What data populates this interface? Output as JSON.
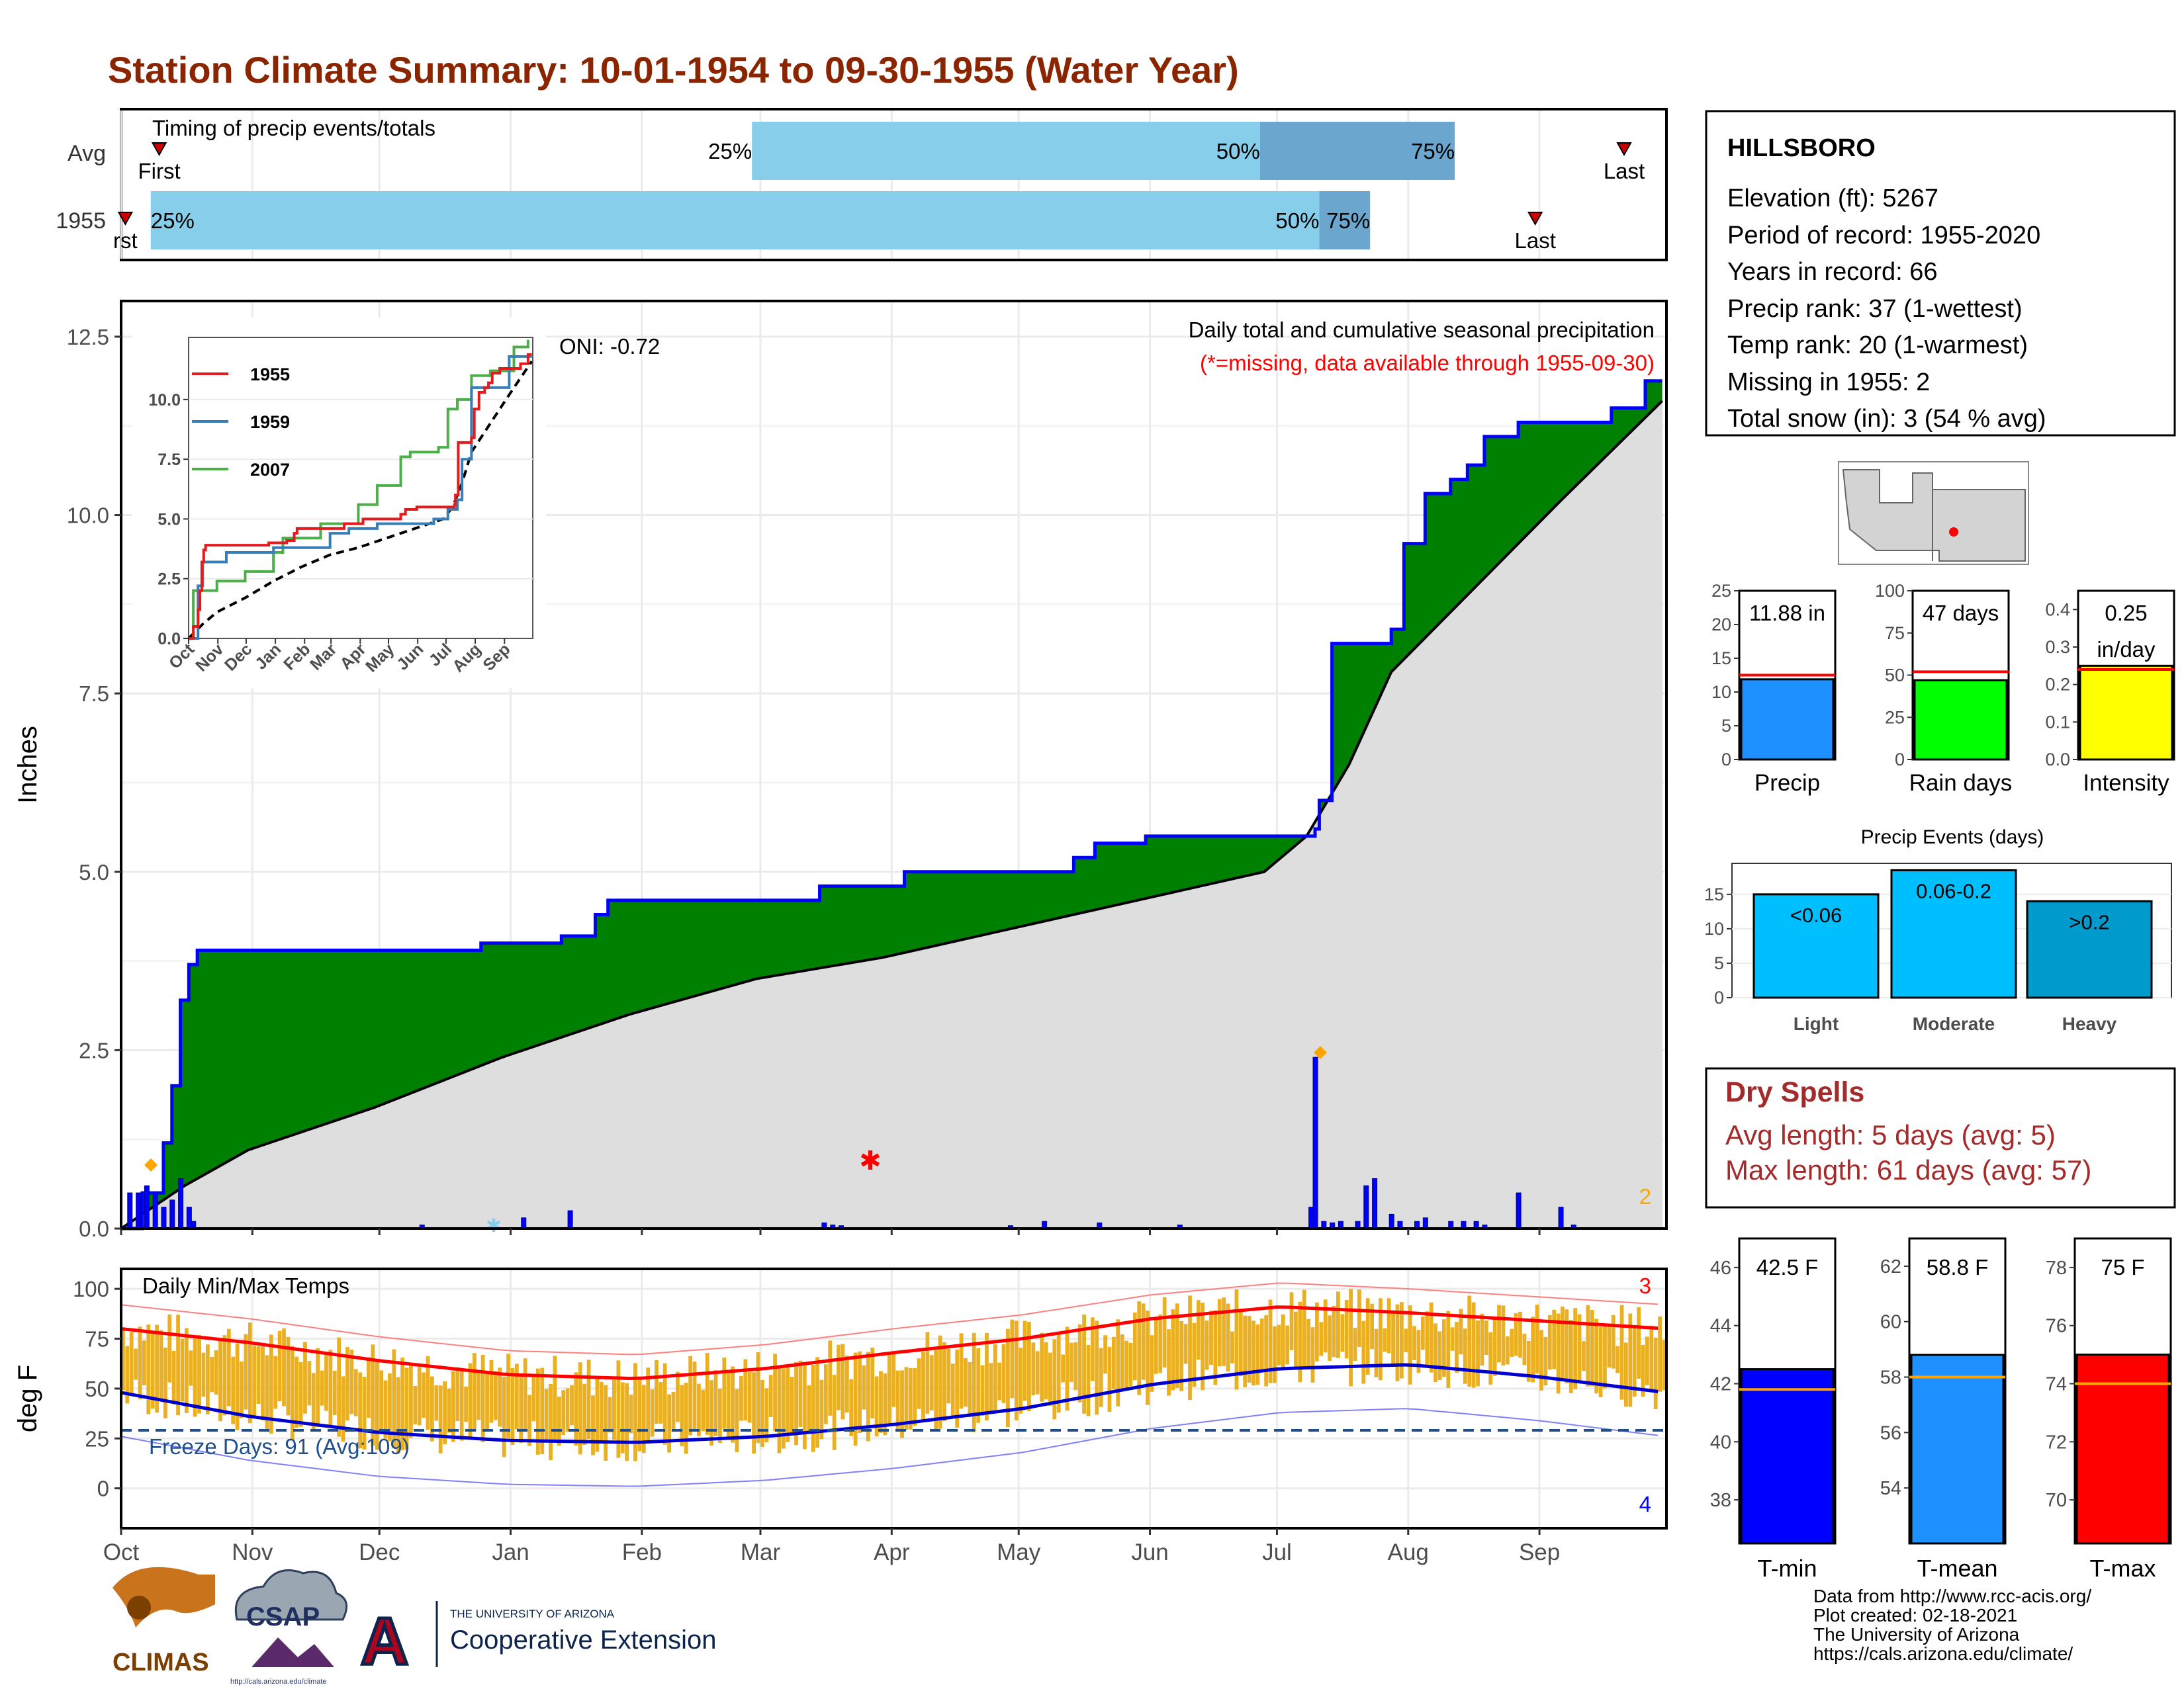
{
  "title": "Station Climate Summary: 10-01-1954 to 09-30-1955 (Water Year)",
  "colors": {
    "title": "#8B2500",
    "precip_bar": "#0000ff",
    "cum_fill": "#008000",
    "avg_fill": "#dedede",
    "timing_light": "#87ceeb",
    "timing_dark": "#6aa6cd",
    "tmax_line": "#ff0000",
    "tmin_line": "#0000cd",
    "temp_bars": "#eab022",
    "dry_spells": "#a52a2a"
  },
  "timing": {
    "label": "Timing of precip events/totals",
    "rows": [
      {
        "name": "Avg",
        "first_day": 9,
        "p25_day": 149,
        "p50_day": 269,
        "p75_day": 315,
        "last_day": 355,
        "p25": "25%",
        "p50": "50%",
        "p75": "75%",
        "first": "First",
        "last": "Last"
      },
      {
        "name": "1955",
        "first_day": 1,
        "p25_day": 7,
        "p50_day": 283,
        "p75_day": 295,
        "last_day": 334,
        "p25": "25%",
        "p50": "50%",
        "p75": "75%",
        "first": "rst",
        "last": "Last"
      }
    ]
  },
  "precip_panel": {
    "ylabel": "Inches",
    "header1": "Daily total and cumulative seasonal precipitation",
    "header2": "(*=missing, data available through 1955-09-30)",
    "oni": "ONI: -0.72",
    "missing_count": "2",
    "yticks": [
      "0.0",
      "2.5",
      "5.0",
      "7.5",
      "10.0",
      "12.5"
    ],
    "xticks": [
      "Oct",
      "Nov",
      "Dec",
      "Jan",
      "Feb",
      "Mar",
      "Apr",
      "May",
      "Jun",
      "Jul",
      "Aug",
      "Sep"
    ]
  },
  "inset": {
    "legend": [
      "1955",
      "1959",
      "2007"
    ],
    "yticks": [
      "0.0",
      "2.5",
      "5.0",
      "7.5",
      "10.0"
    ],
    "xticks": [
      "Oct",
      "Nov",
      "Dec",
      "Jan",
      "Feb",
      "Mar",
      "Apr",
      "May",
      "Jun",
      "Jul",
      "Aug",
      "Sep"
    ]
  },
  "temp_panel": {
    "ylabel": "deg F",
    "label": "Daily Min/Max Temps",
    "freeze": "Freeze Days: 91 (Avg:109)",
    "count_top": "3",
    "count_bottom": "4",
    "yticks": [
      "0",
      "25",
      "50",
      "75",
      "100"
    ]
  },
  "station": {
    "name": "HILLSBORO",
    "lines": [
      "Elevation (ft): 5267",
      "Period of record: 1955-2020",
      "Years in record: 66",
      "Precip rank: 37 (1-wettest)",
      "Temp rank: 20 (1-warmest)",
      "Missing in 1955: 2",
      "Total snow (in): 3 (54 % avg)"
    ]
  },
  "mini_bars": [
    {
      "label": "Precip",
      "value_text": "11.88 in",
      "value": 11.88,
      "avg": 12.5,
      "ymax": 25,
      "ticks": [
        "0",
        "5",
        "10",
        "15",
        "20",
        "25"
      ],
      "color": "#1e90ff"
    },
    {
      "label": "Rain days",
      "value_text": "47 days",
      "value": 47,
      "avg": 52,
      "ymax": 100,
      "ticks": [
        "0",
        "25",
        "50",
        "75",
        "100"
      ],
      "color": "#00ff00"
    },
    {
      "label": "Intensity",
      "value_text": "0.25",
      "value_text2": "in/day",
      "value": 0.25,
      "avg": 0.24,
      "ymax": 0.45,
      "ticks": [
        "0.0",
        "0.1",
        "0.2",
        "0.3",
        "0.4"
      ],
      "color": "#ffff00"
    }
  ],
  "precip_events": {
    "title": "Precip Events (days)",
    "yticks": [
      "0",
      "5",
      "10",
      "15"
    ],
    "bars": [
      {
        "label": "Light",
        "text": "<0.06",
        "value": 15,
        "color": "#00bfff"
      },
      {
        "label": "Moderate",
        "text": "0.06-0.2",
        "value": 18.5,
        "color": "#00bfff"
      },
      {
        "label": "Heavy",
        "text": ">0.2",
        "value": 14,
        "color": "#009acd"
      }
    ]
  },
  "dry_spells": {
    "title": "Dry Spells",
    "line1": "Avg length: 5 days (avg: 5)",
    "line2": "Max length: 61 days (avg: 57)"
  },
  "temp_bars": [
    {
      "label": "T-min",
      "value_text": "42.5 F",
      "value": 42.5,
      "avg": 41.8,
      "min": 36.5,
      "max": 47,
      "ticks": [
        "38",
        "40",
        "42",
        "44",
        "46"
      ],
      "color": "#0000ff"
    },
    {
      "label": "T-mean",
      "value_text": "58.8 F",
      "value": 58.8,
      "avg": 58.0,
      "min": 52,
      "max": 63,
      "ticks": [
        "54",
        "56",
        "58",
        "60",
        "62"
      ],
      "color": "#1e90ff"
    },
    {
      "label": "T-max",
      "value_text": "75 F",
      "value": 75,
      "avg": 74,
      "min": 68.5,
      "max": 79,
      "ticks": [
        "70",
        "72",
        "74",
        "76",
        "78"
      ],
      "color": "#ff0000"
    }
  ],
  "footer": {
    "lines": [
      "Data from http://www.rcc-acis.org/",
      "Plot created: 02-18-2021",
      "The University of Arizona",
      "https://cals.arizona.edu/climate/"
    ]
  },
  "logos": {
    "climas": "CLIMAS",
    "csap": "CSAP",
    "ua_small": "THE UNIVERSITY OF ARIZONA",
    "ua_big": "Cooperative Extension",
    "csap_url": "http://cals.arizona.edu/climate"
  },
  "chart_data": {
    "type": "area",
    "title": "Station Climate Summary: 10-01-1954 to 09-30-1955 (Water Year)",
    "ylabel": "Inches",
    "ylim": [
      0,
      13
    ],
    "x_unit": "day of water year (0 = Oct 1)",
    "cumulative_1955": {
      "x": [
        0,
        5,
        10,
        12,
        14,
        16,
        18,
        20,
        74,
        85,
        104,
        112,
        115,
        160,
        165,
        185,
        188,
        200,
        225,
        230,
        242,
        270,
        282,
        283,
        286,
        300,
        303,
        308,
        314,
        318,
        322,
        330,
        352,
        360,
        364
      ],
      "y": [
        0,
        0.5,
        1.2,
        2.0,
        3.2,
        3.7,
        3.9,
        3.9,
        3.9,
        4.0,
        4.1,
        4.4,
        4.6,
        4.6,
        4.8,
        5.0,
        5.0,
        5.0,
        5.2,
        5.4,
        5.5,
        5.5,
        5.6,
        6.0,
        8.2,
        8.4,
        9.6,
        10.3,
        10.5,
        10.7,
        11.1,
        11.3,
        11.5,
        11.88,
        11.88
      ]
    },
    "average_cumulative": {
      "x": [
        0,
        15,
        30,
        60,
        90,
        120,
        150,
        180,
        210,
        240,
        270,
        280,
        290,
        300,
        320,
        340,
        364
      ],
      "y": [
        0.0,
        0.6,
        1.1,
        1.7,
        2.4,
        3.0,
        3.5,
        3.8,
        4.2,
        4.6,
        5.0,
        5.5,
        6.5,
        7.8,
        9.0,
        10.2,
        11.6
      ]
    },
    "daily_precip": {
      "x": [
        2,
        4,
        6,
        8,
        10,
        12,
        14,
        16,
        17,
        71,
        95,
        106,
        166,
        168,
        170,
        210,
        218,
        231,
        250,
        281,
        282,
        284,
        286,
        288,
        292,
        294,
        296,
        300,
        302,
        306,
        308,
        314,
        317,
        320,
        322,
        330,
        340,
        343
      ],
      "y": [
        0.5,
        0.5,
        0.6,
        0.5,
        0.3,
        0.4,
        0.7,
        0.3,
        0.1,
        0.05,
        0.15,
        0.25,
        0.08,
        0.05,
        0.04,
        0.04,
        0.1,
        0.08,
        0.05,
        0.3,
        2.4,
        0.1,
        0.08,
        0.1,
        0.1,
        0.6,
        0.7,
        0.2,
        0.1,
        0.1,
        0.15,
        0.1,
        0.1,
        0.1,
        0.05,
        0.5,
        0.3,
        0.05
      ]
    },
    "temps": {
      "avg_tmax": [
        80,
        73,
        64,
        57,
        55,
        60,
        68,
        75,
        85,
        91,
        88,
        84,
        80
      ],
      "avg_tmin": [
        48,
        36,
        28,
        24,
        23,
        26,
        32,
        40,
        52,
        60,
        62,
        56,
        48
      ],
      "freeze_line": 32,
      "ylim": [
        -20,
        110
      ]
    }
  }
}
